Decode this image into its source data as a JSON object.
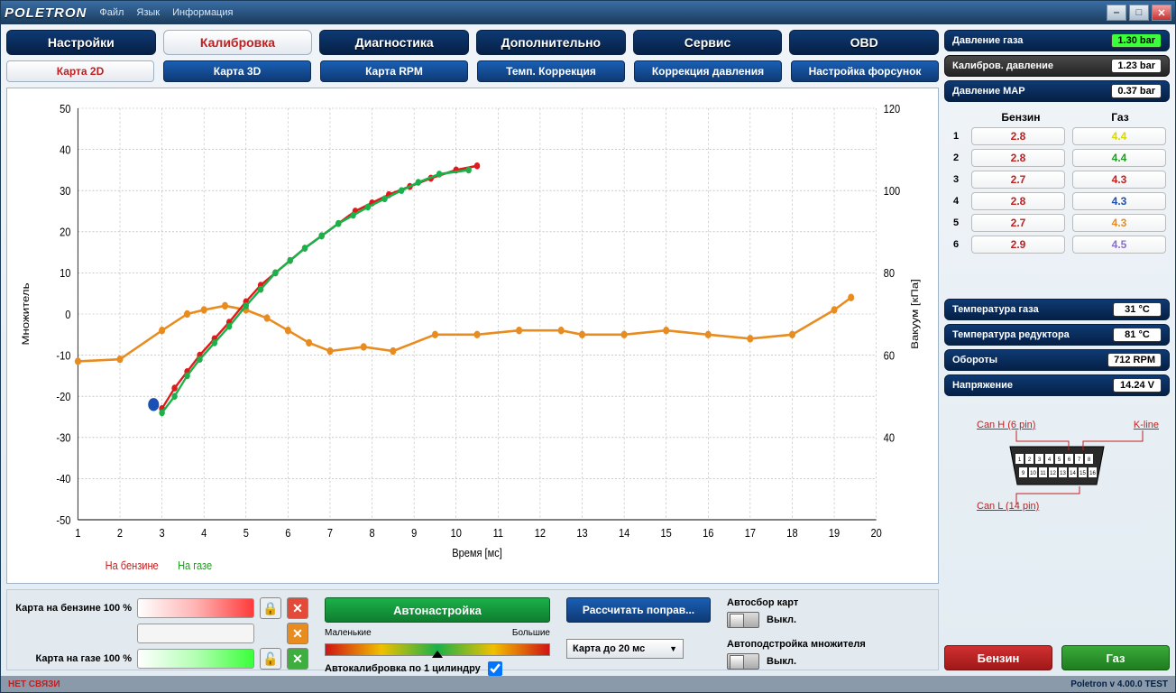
{
  "titlebar": {
    "logo": "POLETRON",
    "menu": [
      "Файл",
      "Язык",
      "Информация"
    ]
  },
  "tabs": [
    "Настройки",
    "Калибровка",
    "Диагностика",
    "Дополнительно",
    "Сервис",
    "OBD"
  ],
  "activeTab": 1,
  "subtabs": [
    "Карта 2D",
    "Карта 3D",
    "Карта RPM",
    "Темп. Коррекция",
    "Коррекция давления",
    "Настройка форсунок"
  ],
  "activeSubtab": 0,
  "chart": {
    "xLabel": "Время [мс]",
    "yLabelL": "Множитель",
    "yLabelR": "Вакуум [кПа]",
    "xTicks": [
      1,
      2,
      3,
      4,
      5,
      6,
      7,
      8,
      9,
      10,
      11,
      12,
      13,
      14,
      15,
      16,
      17,
      18,
      19,
      20
    ],
    "yTicksL": [
      -50,
      -40,
      -30,
      -20,
      -10,
      0,
      10,
      20,
      30,
      40,
      50
    ],
    "yTicksR": [
      40,
      60,
      80,
      100,
      120
    ],
    "legendL": "На бензине",
    "legendLColor": "#c02020",
    "legendR": "На газе",
    "legendRColor": "#1e9e1e",
    "series": {
      "redLine": {
        "color": "#e01a1a",
        "points": [
          [
            3.0,
            -23
          ],
          [
            3.3,
            -18
          ],
          [
            3.6,
            -14
          ],
          [
            3.9,
            -10
          ],
          [
            4.25,
            -6
          ],
          [
            4.6,
            -2
          ],
          [
            5.0,
            3
          ],
          [
            5.35,
            7
          ],
          [
            5.7,
            10
          ],
          [
            6.05,
            13
          ],
          [
            6.4,
            16
          ],
          [
            6.8,
            19
          ],
          [
            7.2,
            22
          ],
          [
            7.6,
            25
          ],
          [
            8.0,
            27
          ],
          [
            8.4,
            29
          ],
          [
            8.9,
            31
          ],
          [
            9.4,
            33
          ],
          [
            10.0,
            35
          ],
          [
            10.5,
            36
          ]
        ]
      },
      "greenLine": {
        "color": "#1ab14a",
        "points": [
          [
            3.0,
            -24
          ],
          [
            3.3,
            -20
          ],
          [
            3.6,
            -15
          ],
          [
            3.9,
            -11
          ],
          [
            4.25,
            -7
          ],
          [
            4.6,
            -3
          ],
          [
            5.0,
            2
          ],
          [
            5.35,
            6
          ],
          [
            5.7,
            10
          ],
          [
            6.05,
            13
          ],
          [
            6.4,
            16
          ],
          [
            6.8,
            19
          ],
          [
            7.2,
            22
          ],
          [
            7.55,
            24
          ],
          [
            7.9,
            26
          ],
          [
            8.3,
            28
          ],
          [
            8.7,
            30
          ],
          [
            9.1,
            32
          ],
          [
            9.6,
            34
          ],
          [
            10.3,
            35
          ]
        ]
      },
      "orange": {
        "color": "#e88c20",
        "points": [
          [
            1,
            58.5
          ],
          [
            2,
            59
          ],
          [
            3,
            66
          ],
          [
            3.6,
            70
          ],
          [
            4,
            71
          ],
          [
            4.5,
            72
          ],
          [
            5,
            71
          ],
          [
            5.5,
            69
          ],
          [
            6,
            66
          ],
          [
            6.5,
            63
          ],
          [
            7,
            61
          ],
          [
            7.8,
            62
          ],
          [
            8.5,
            61
          ],
          [
            9.5,
            65
          ],
          [
            10.5,
            65
          ],
          [
            11.5,
            66
          ],
          [
            12.5,
            66
          ],
          [
            13,
            65
          ],
          [
            14,
            65
          ],
          [
            15,
            66
          ],
          [
            16,
            65
          ],
          [
            17,
            64
          ],
          [
            18,
            65
          ],
          [
            19,
            71
          ],
          [
            19.4,
            74
          ]
        ]
      },
      "blueDot": {
        "color": "#1a4fb4",
        "x": 2.8,
        "y": -22,
        "r": 6
      }
    }
  },
  "bottom": {
    "mapBenzine": "Карта на бензине  100 %",
    "mapGas": "Карта на газе  100 %",
    "autoBtn": "Автонастройка",
    "gradL": "Маленькие",
    "gradR": "Большие",
    "autocal": "Автокалибровка по 1 цилиндру",
    "calcBtn": "Рассчитать поправ...",
    "selMap": "Карта до 20 мс",
    "sw1title": "Автосбор карт",
    "sw1val": "Выкл.",
    "sw2title": "Автоподстройка  множителя",
    "sw2val": "Выкл."
  },
  "side": {
    "r1": {
      "label": "Давление газа",
      "val": "1.30 bar",
      "valClass": "green"
    },
    "r2": {
      "label": "Калибров. давление",
      "val": "1.23 bar"
    },
    "r3": {
      "label": "Давление MAP",
      "val": "0.37 bar"
    },
    "tableHdr": {
      "b": "Бензин",
      "g": "Газ"
    },
    "rows": [
      {
        "i": "1",
        "b": "2.8",
        "g": "4.4",
        "gc": "#d8d800"
      },
      {
        "i": "2",
        "b": "2.8",
        "g": "4.4",
        "gc": "#1e9e1e"
      },
      {
        "i": "3",
        "b": "2.7",
        "g": "4.3",
        "gc": "#d01a1a"
      },
      {
        "i": "4",
        "b": "2.8",
        "g": "4.3",
        "gc": "#1a4fb4"
      },
      {
        "i": "5",
        "b": "2.7",
        "g": "4.3",
        "gc": "#e88c20"
      },
      {
        "i": "6",
        "b": "2.9",
        "g": "4.5",
        "gc": "#8a6fc8"
      }
    ],
    "tGas": {
      "label": "Температура газа",
      "val": "31 °C"
    },
    "tRed": {
      "label": "Температура редуктора",
      "val": "81 °C"
    },
    "rpm": {
      "label": "Обороты",
      "val": "712 RPM"
    },
    "volt": {
      "label": "Напряжение",
      "val": "14.24 V"
    },
    "conn": {
      "canH": "Can H (6 pin)",
      "kline": "K-line",
      "canL": "Can L (14 pin)"
    },
    "fuelB": "Бензин",
    "fuelG": "Газ"
  },
  "status": {
    "left": "НЕТ СВЯЗИ",
    "right": "Poletron v 4.00.0 TEST"
  }
}
